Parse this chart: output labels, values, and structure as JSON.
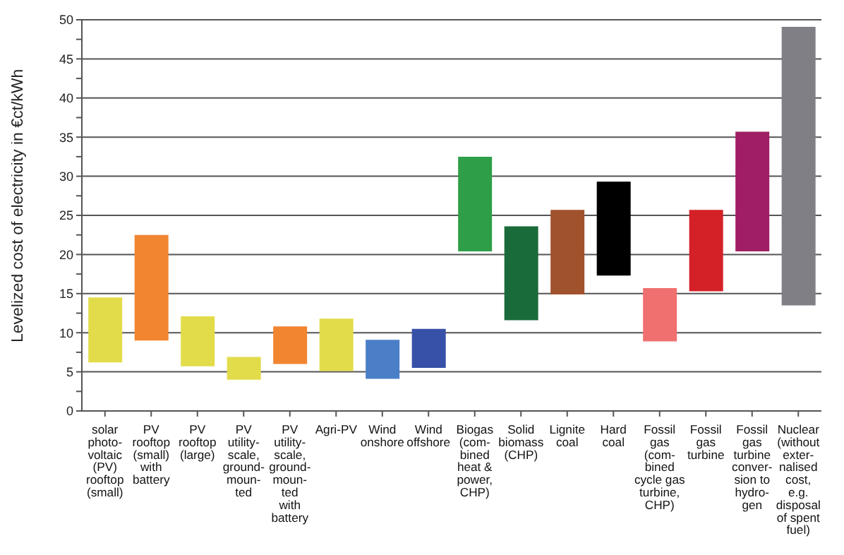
{
  "chart_data": {
    "type": "bar",
    "ylabel": "Levelized cost of electricity in €ct/kWh",
    "categories": [
      "solar\nphoto-\nvoltaic\n(PV)\nrooftop\n(small)",
      "PV\nrooftop\n(small)\nwith\nbattery",
      "PV\nrooftop\n(large)",
      "PV\nutility-\nscale,\nground-\nmoun-\nted",
      "PV\nutility-\nscale,\nground-\nmoun-\nted\nwith\nbattery",
      "Agri-PV",
      "Wind\nonshore",
      "Wind\noffshore",
      "Biogas\n(com-\nbined\nheat &\npower,\nCHP)",
      "Solid\nbiomass\n(CHP)",
      "Lignite\ncoal",
      "Hard\ncoal",
      "Fossil\ngas\n(com-\nbined\ncycle gas\nturbine,\nCHP)",
      "Fossil\ngas\nturbine",
      "Fossil\ngas\nturbine\nconver-\nsion to\nhydro-\ngen",
      "Nuclear\n(without\nexter-\nnalised\ncost,\ne.g.\ndisposal\nof spent\nfuel)"
    ],
    "base": [
      6.2,
      9.0,
      5.7,
      4.0,
      6.0,
      5.1,
      4.1,
      5.5,
      20.4,
      11.6,
      14.9,
      17.3,
      8.9,
      15.3,
      20.4,
      13.5
    ],
    "values": [
      8.3,
      13.5,
      6.4,
      2.9,
      4.8,
      6.7,
      5.0,
      5.0,
      12.1,
      12.0,
      10.8,
      12.0,
      6.8,
      10.4,
      15.3,
      35.6
    ],
    "colors": [
      "#e2dc4a",
      "#f28530",
      "#e2dc4a",
      "#e2dc4a",
      "#f28530",
      "#e2dc4a",
      "#4a7fc8",
      "#3750a8",
      "#2e9e48",
      "#1a6b3a",
      "#a0522d",
      "#000000",
      "#f07070",
      "#d42127",
      "#a01f64",
      "#7f7f85"
    ],
    "ylim": [
      0,
      50
    ],
    "yticks": [
      0,
      {
        "value": 2.5,
        "label": null
      },
      5,
      {
        "value": 7.5,
        "label": null
      },
      10,
      {
        "value": 12.5,
        "label": null
      },
      15,
      {
        "value": 17.5,
        "label": null
      },
      20,
      {
        "value": 22.5,
        "label": null
      },
      25,
      {
        "value": 27.5,
        "label": null
      },
      30,
      {
        "value": 32.5,
        "label": null
      },
      35,
      {
        "value": 37.5,
        "label": null
      },
      40,
      {
        "value": 42.5,
        "label": null
      },
      45,
      {
        "value": 47.5,
        "label": null
      },
      50
    ],
    "grid": "y",
    "legend": false
  }
}
